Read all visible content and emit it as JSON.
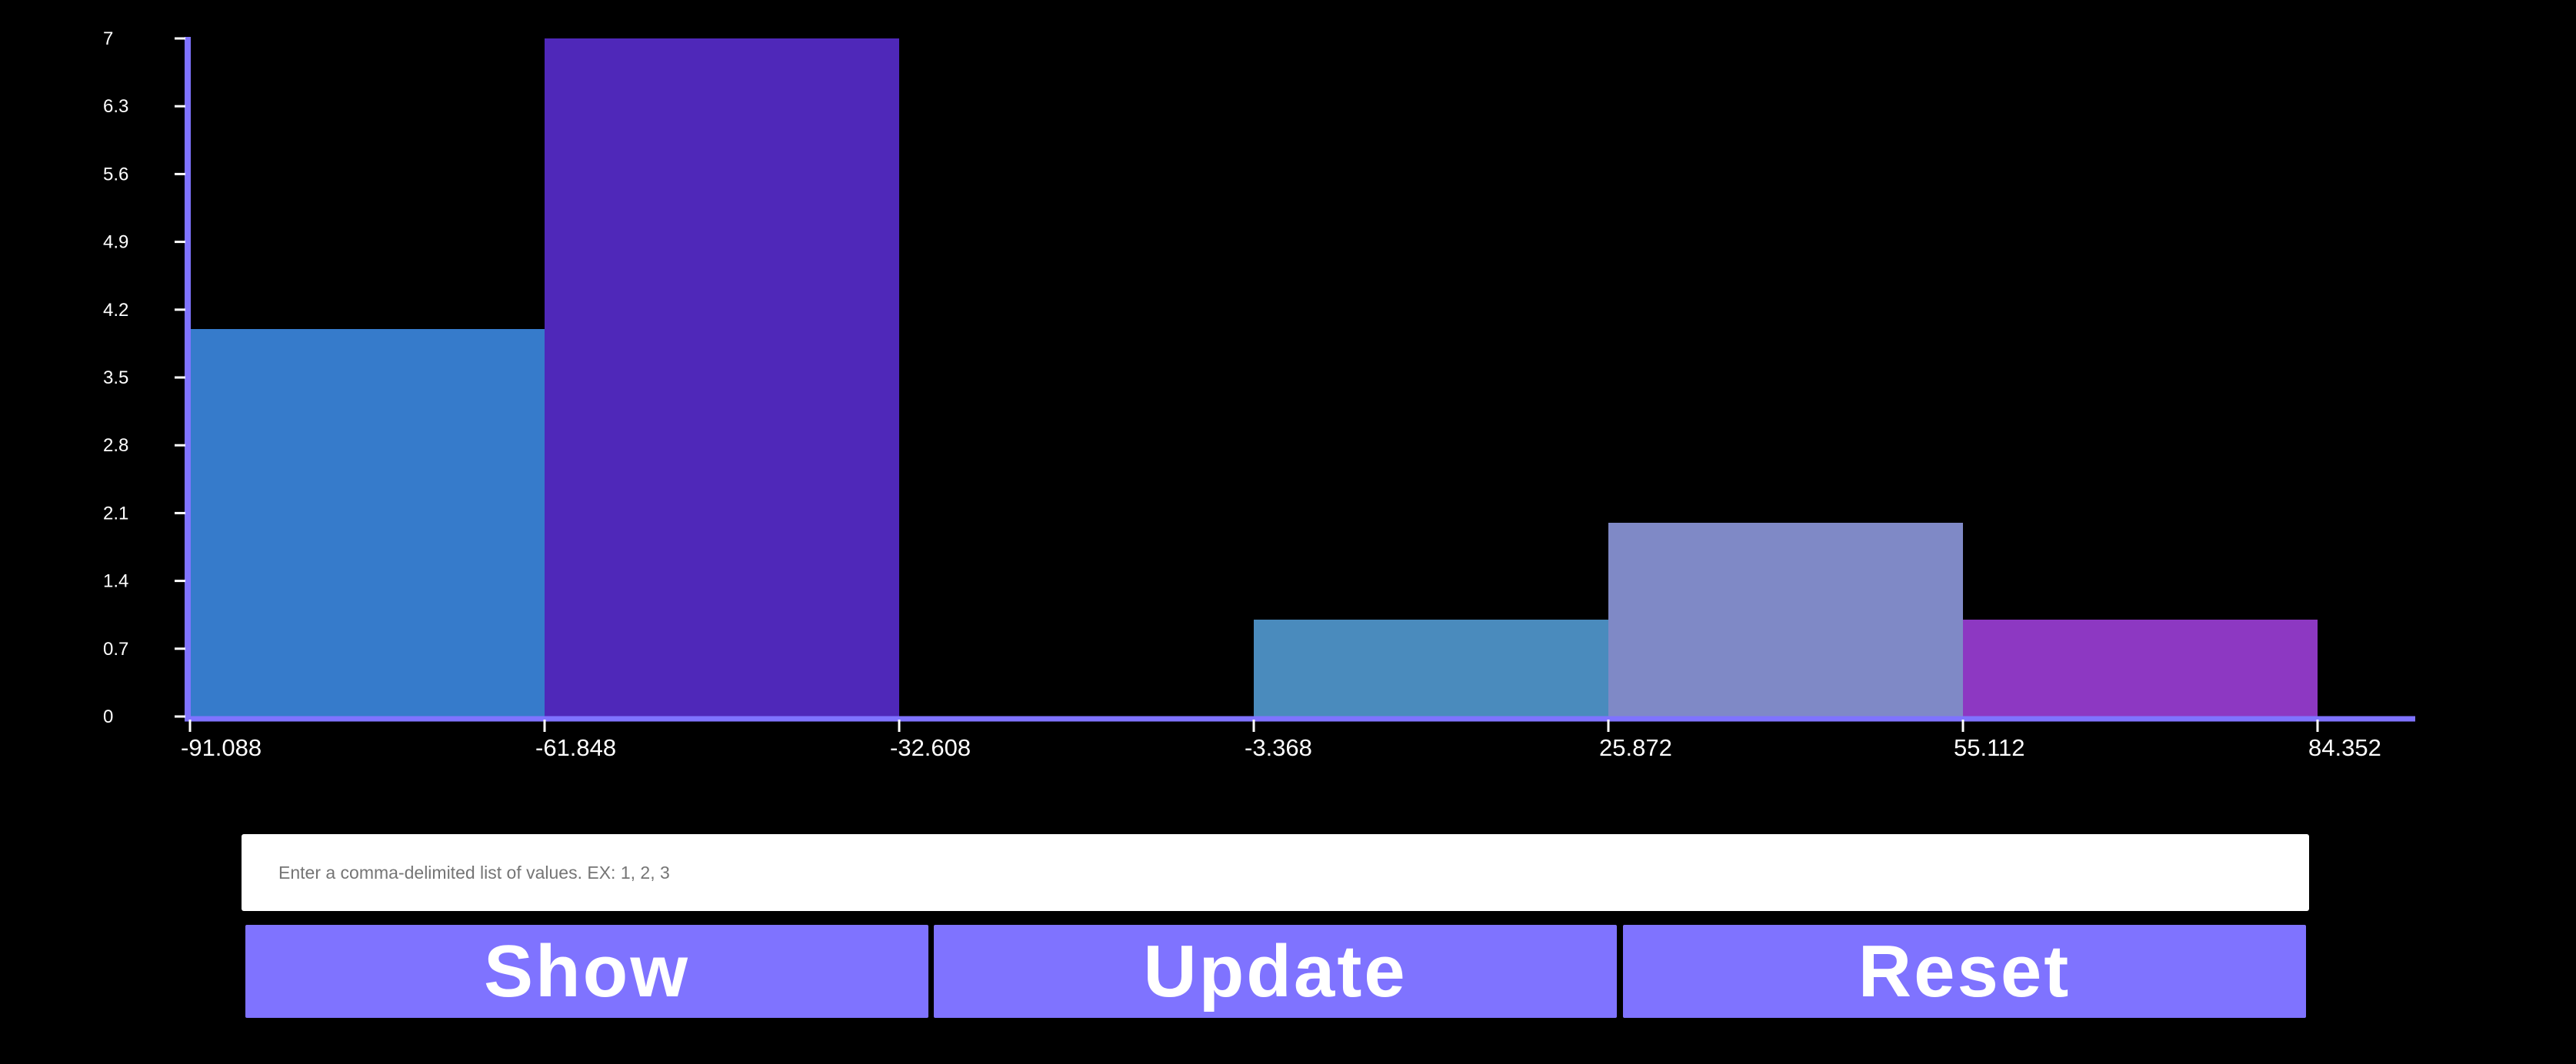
{
  "chart_data": {
    "type": "bar",
    "title": "",
    "xlabel": "",
    "ylabel": "",
    "bin_edges": [
      -91.088,
      -61.848,
      -32.608,
      -3.368,
      25.872,
      55.112,
      84.352
    ],
    "x_tick_labels": [
      "-91.088",
      "-61.848",
      "-32.608",
      "-3.368",
      "25.872",
      "55.112",
      "84.352"
    ],
    "values": [
      4,
      7,
      0,
      1,
      2,
      1
    ],
    "bar_colors": [
      "#367bcb",
      "#4f28b9",
      "#000000",
      "#4a8bbd",
      "#7f89c6",
      "#8d38c2"
    ],
    "y_tick_labels": [
      "0",
      "0.7",
      "1.4",
      "2.1",
      "2.8",
      "3.5",
      "4.2",
      "4.9",
      "5.6",
      "6.3",
      "7"
    ],
    "ylim": [
      0,
      7
    ],
    "xlim": [
      -91.088,
      84.352
    ],
    "grid": false,
    "axis_color": "#7f73ff"
  },
  "input": {
    "placeholder": "Enter a comma-delimited list of values. EX: 1, 2, 3",
    "value": ""
  },
  "buttons": {
    "show": "Show",
    "update": "Update",
    "reset": "Reset"
  }
}
